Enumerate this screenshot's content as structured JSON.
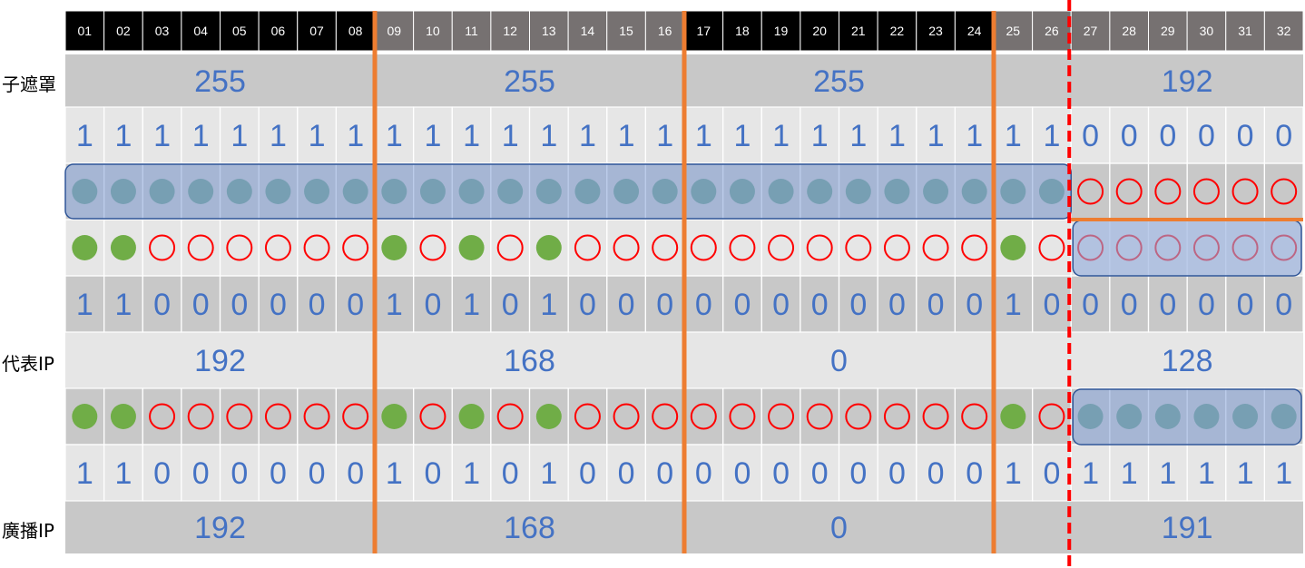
{
  "labels": {
    "subnet_mask": "子遮罩",
    "network_ip": "代表IP",
    "broadcast_ip": "廣播IP"
  },
  "bit_numbers": [
    "01",
    "02",
    "03",
    "04",
    "05",
    "06",
    "07",
    "08",
    "09",
    "10",
    "11",
    "12",
    "13",
    "14",
    "15",
    "16",
    "17",
    "18",
    "19",
    "20",
    "21",
    "22",
    "23",
    "24",
    "25",
    "26",
    "27",
    "28",
    "29",
    "30",
    "31",
    "32"
  ],
  "mask": {
    "octets": [
      "255",
      "255",
      "255",
      "192"
    ],
    "bits": [
      "1",
      "1",
      "1",
      "1",
      "1",
      "1",
      "1",
      "1",
      "1",
      "1",
      "1",
      "1",
      "1",
      "1",
      "1",
      "1",
      "1",
      "1",
      "1",
      "1",
      "1",
      "1",
      "1",
      "1",
      "1",
      "1",
      "0",
      "0",
      "0",
      "0",
      "0",
      "0"
    ],
    "markers": [
      "dark",
      "dark",
      "dark",
      "dark",
      "dark",
      "dark",
      "dark",
      "dark",
      "dark",
      "dark",
      "dark",
      "dark",
      "dark",
      "dark",
      "dark",
      "dark",
      "dark",
      "dark",
      "dark",
      "dark",
      "dark",
      "dark",
      "dark",
      "dark",
      "dark",
      "dark",
      "empty",
      "empty",
      "empty",
      "empty",
      "empty",
      "empty"
    ]
  },
  "network": {
    "markers": [
      "green",
      "green",
      "empty",
      "empty",
      "empty",
      "empty",
      "empty",
      "empty",
      "green",
      "empty",
      "green",
      "empty",
      "green",
      "empty",
      "empty",
      "empty",
      "empty",
      "empty",
      "empty",
      "empty",
      "empty",
      "empty",
      "empty",
      "empty",
      "green",
      "empty",
      "empty",
      "empty",
      "empty",
      "empty",
      "empty",
      "empty"
    ],
    "bits": [
      "1",
      "1",
      "0",
      "0",
      "0",
      "0",
      "0",
      "0",
      "1",
      "0",
      "1",
      "0",
      "1",
      "0",
      "0",
      "0",
      "0",
      "0",
      "0",
      "0",
      "0",
      "0",
      "0",
      "0",
      "1",
      "0",
      "0",
      "0",
      "0",
      "0",
      "0",
      "0"
    ],
    "octets": [
      "192",
      "168",
      "0",
      "128"
    ]
  },
  "broadcast": {
    "markers": [
      "green",
      "green",
      "empty",
      "empty",
      "empty",
      "empty",
      "empty",
      "empty",
      "green",
      "empty",
      "green",
      "empty",
      "green",
      "empty",
      "empty",
      "empty",
      "empty",
      "empty",
      "empty",
      "empty",
      "empty",
      "empty",
      "empty",
      "empty",
      "green",
      "empty",
      "dark",
      "dark",
      "dark",
      "dark",
      "dark",
      "dark"
    ],
    "bits": [
      "1",
      "1",
      "0",
      "0",
      "0",
      "0",
      "0",
      "0",
      "1",
      "0",
      "1",
      "0",
      "1",
      "0",
      "0",
      "0",
      "0",
      "0",
      "0",
      "0",
      "0",
      "0",
      "0",
      "0",
      "1",
      "0",
      "1",
      "1",
      "1",
      "1",
      "1",
      "1"
    ],
    "octets": [
      "192",
      "168",
      "0",
      "191"
    ]
  },
  "colors": {
    "header_black": "#000000",
    "header_gray": "#767171",
    "row_dark": "#c8c8c8",
    "row_light": "#e6e6e6",
    "number_blue": "#4472c4",
    "octet_line": "#ed7d31",
    "mask_line": "#ff0000",
    "dot_green": "#70ad47",
    "dot_dark": "#548f76",
    "ring_red": "#ff0000",
    "highlight_fill": "#8faadc",
    "highlight_stroke": "#2f5597"
  }
}
